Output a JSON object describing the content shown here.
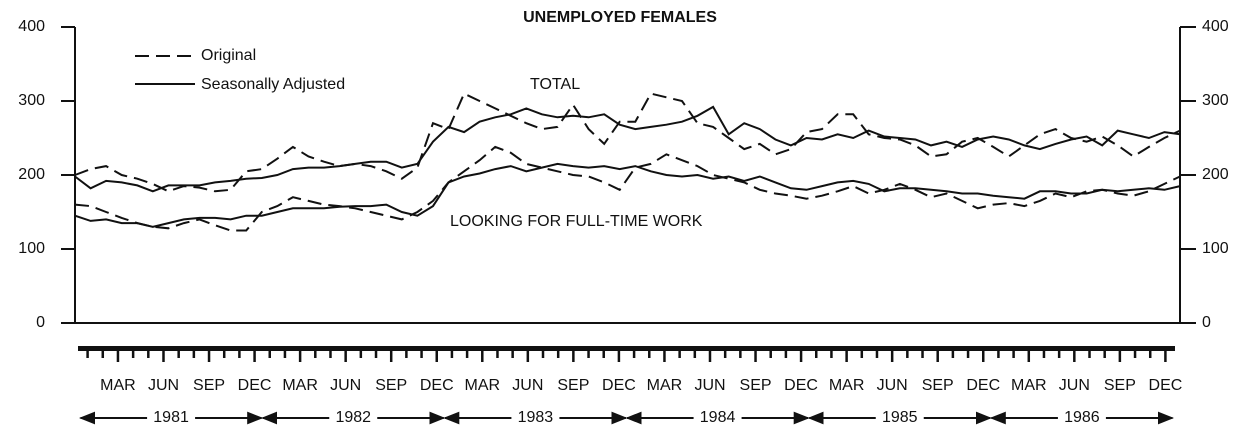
{
  "chart_data": {
    "type": "line",
    "title": "UNEMPLOYED FEMALES",
    "legend": {
      "original": "Original",
      "adjusted": "Seasonally Adjusted"
    },
    "dash": {
      "original": "dashed",
      "adjusted": "solid"
    },
    "color": "#111111",
    "categories": [
      null,
      null,
      "MAR",
      null,
      null,
      "JUN",
      null,
      null,
      "SEP",
      null,
      null,
      "DEC",
      null,
      null,
      "MAR",
      null,
      null,
      "JUN",
      null,
      null,
      "SEP",
      null,
      null,
      "DEC",
      null,
      null,
      "MAR",
      null,
      null,
      "JUN",
      null,
      null,
      "SEP",
      null,
      null,
      "DEC",
      null,
      null,
      "MAR",
      null,
      null,
      "JUN",
      null,
      null,
      "SEP",
      null,
      null,
      "DEC",
      null,
      null,
      "MAR",
      null,
      null,
      "JUN",
      null,
      null,
      "SEP",
      null,
      null,
      "DEC",
      null,
      null,
      "MAR",
      null,
      null,
      "JUN",
      null,
      null,
      "SEP",
      null,
      null,
      "DEC"
    ],
    "years": [
      "1981",
      "1982",
      "1983",
      "1984",
      "1985",
      "1986"
    ],
    "groups": [
      {
        "label": "TOTAL",
        "original": [
          200,
          208,
          212,
          200,
          195,
          188,
          178,
          185,
          183,
          178,
          180,
          205,
          208,
          222,
          238,
          225,
          218,
          212,
          215,
          212,
          205,
          195,
          210,
          270,
          262,
          310,
          300,
          290,
          280,
          270,
          262,
          265,
          295,
          262,
          242,
          272,
          272,
          310,
          305,
          300,
          270,
          265,
          250,
          235,
          242,
          228,
          235,
          258,
          262,
          282,
          282,
          255,
          250,
          248,
          240,
          225,
          228,
          245,
          250,
          238,
          225,
          240,
          255,
          262,
          250,
          245,
          252,
          240,
          225,
          238,
          250,
          260
        ],
        "adjusted": [
          198,
          182,
          192,
          190,
          186,
          178,
          186,
          186,
          186,
          190,
          192,
          195,
          196,
          200,
          208,
          210,
          210,
          212,
          215,
          218,
          218,
          210,
          215,
          245,
          265,
          258,
          272,
          278,
          282,
          290,
          282,
          278,
          280,
          278,
          282,
          268,
          262,
          265,
          268,
          272,
          280,
          292,
          255,
          270,
          262,
          248,
          240,
          250,
          248,
          255,
          250,
          260,
          252,
          250,
          248,
          240,
          245,
          238,
          248,
          252,
          248,
          240,
          235,
          242,
          248,
          252,
          240,
          260,
          255,
          250,
          258,
          255
        ]
      },
      {
        "label": "LOOKING FOR FULL-TIME WORK",
        "original": [
          160,
          158,
          150,
          142,
          135,
          130,
          128,
          135,
          140,
          132,
          125,
          125,
          150,
          158,
          170,
          165,
          160,
          158,
          155,
          150,
          145,
          140,
          150,
          165,
          190,
          205,
          220,
          238,
          230,
          215,
          210,
          205,
          200,
          198,
          190,
          180,
          210,
          215,
          228,
          220,
          212,
          200,
          195,
          190,
          180,
          175,
          172,
          168,
          172,
          178,
          185,
          175,
          180,
          188,
          180,
          170,
          175,
          165,
          155,
          160,
          162,
          158,
          165,
          175,
          170,
          178,
          180,
          175,
          172,
          178,
          188,
          198
        ],
        "adjusted": [
          145,
          138,
          140,
          135,
          135,
          130,
          135,
          140,
          142,
          142,
          140,
          145,
          145,
          150,
          155,
          155,
          155,
          157,
          158,
          158,
          160,
          150,
          145,
          158,
          190,
          198,
          202,
          208,
          212,
          205,
          210,
          215,
          212,
          210,
          212,
          208,
          212,
          205,
          200,
          198,
          200,
          195,
          198,
          192,
          198,
          190,
          182,
          180,
          185,
          190,
          192,
          188,
          178,
          182,
          182,
          180,
          178,
          175,
          175,
          172,
          170,
          168,
          178,
          178,
          175,
          175,
          180,
          178,
          180,
          182,
          180,
          185
        ]
      }
    ],
    "ylim": [
      0,
      400
    ],
    "yticks": [
      0,
      100,
      200,
      300,
      400
    ],
    "y2lim": [
      0,
      400
    ],
    "y2ticks": [
      0,
      100,
      200,
      300,
      400
    ]
  }
}
